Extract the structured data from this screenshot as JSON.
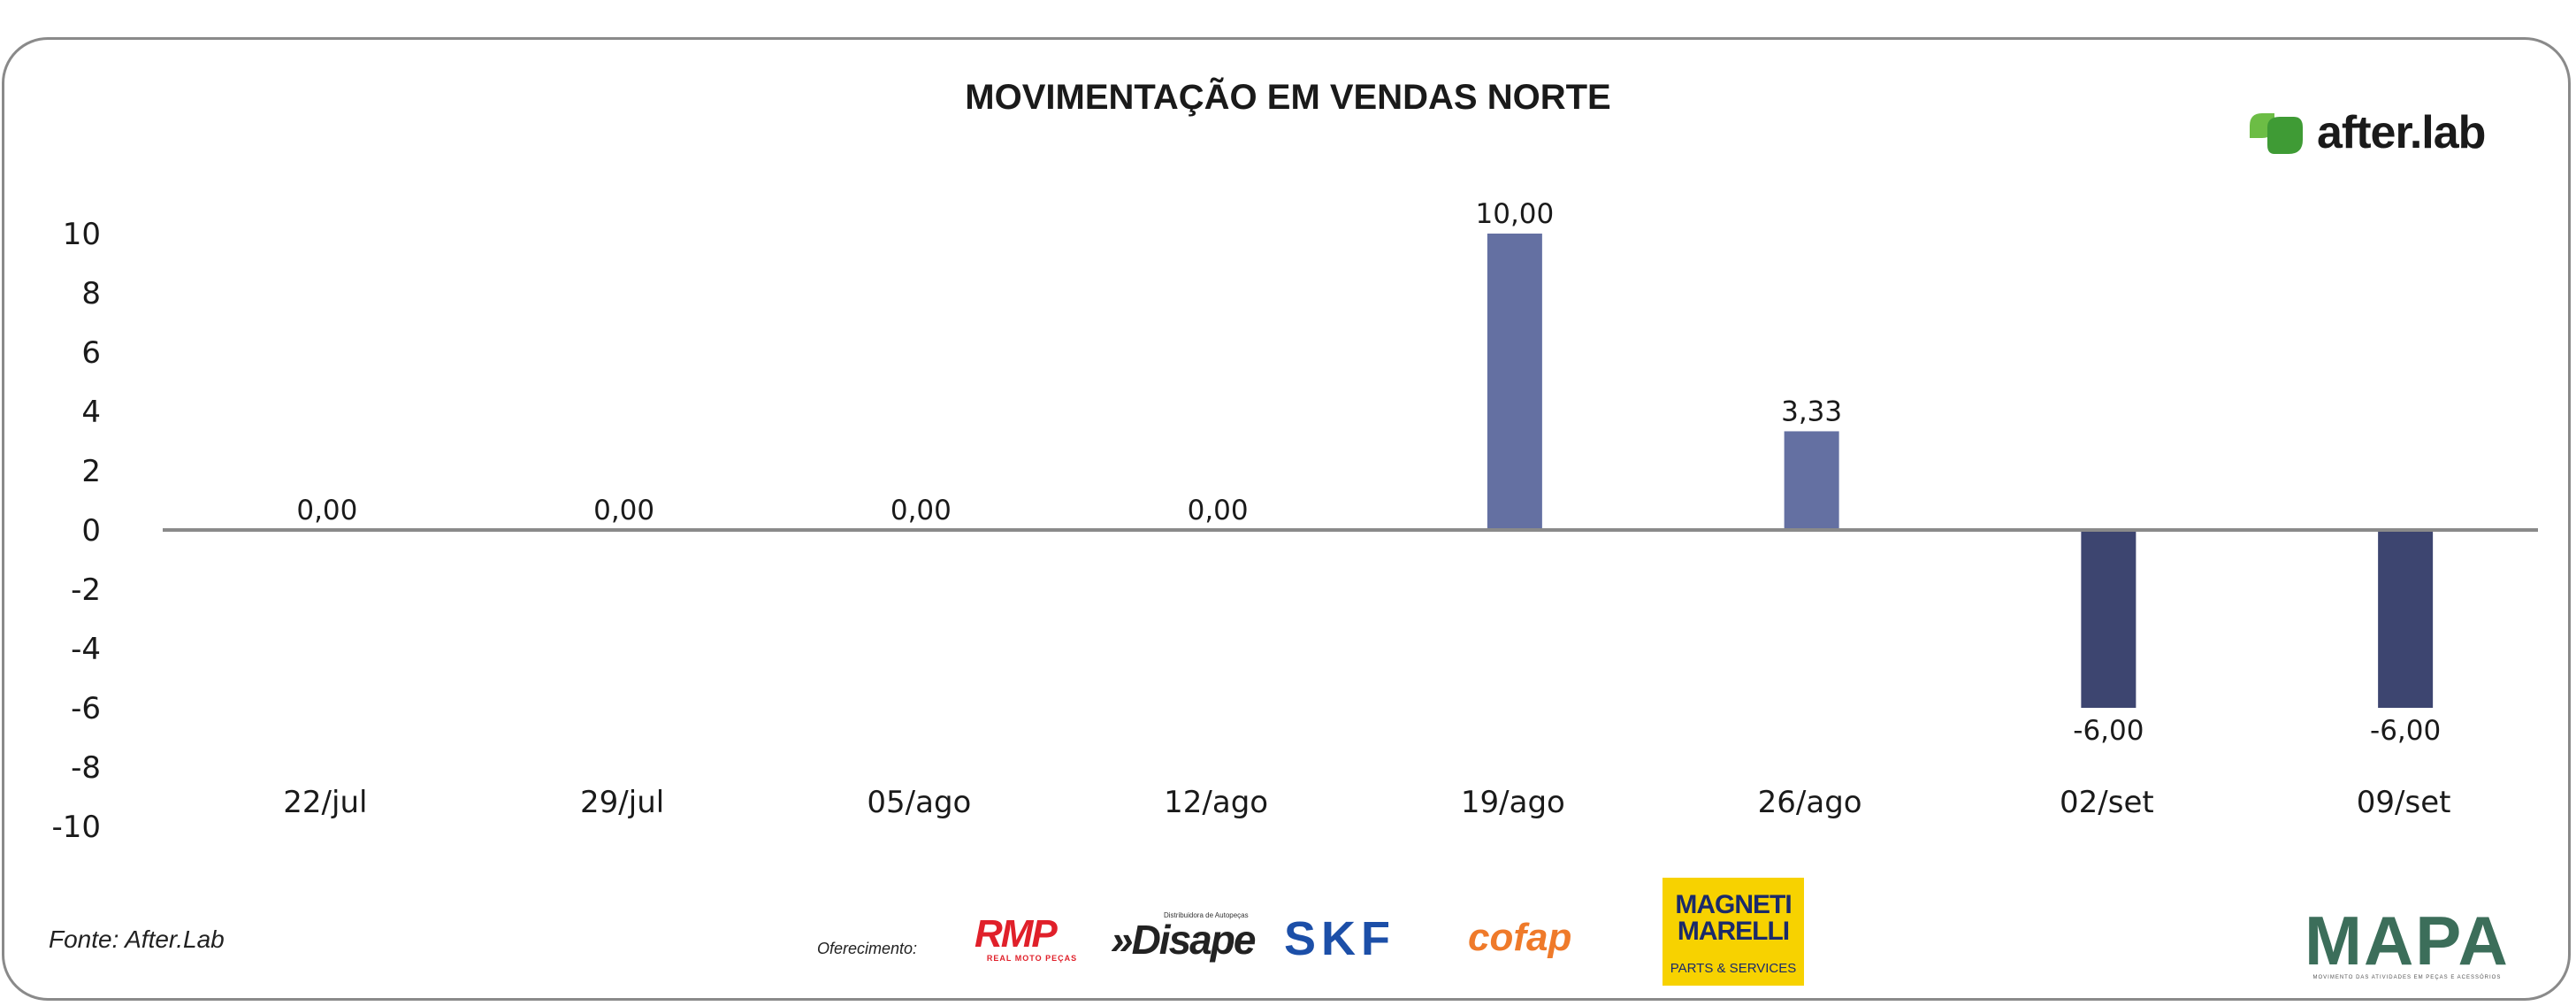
{
  "chart_data": {
    "type": "bar",
    "title": "MOVIMENTAÇÃO EM VENDAS NORTE",
    "categories": [
      "22/jul",
      "29/jul",
      "05/ago",
      "12/ago",
      "19/ago",
      "26/ago",
      "02/set",
      "09/set"
    ],
    "values": [
      0.0,
      0.0,
      0.0,
      0.0,
      10.0,
      3.33,
      -6.0,
      -6.0
    ],
    "value_labels": [
      "0,00",
      "0,00",
      "0,00",
      "0,00",
      "10,00",
      "3,33",
      "-6,00",
      "-6,00"
    ],
    "ylim": [
      -10,
      10
    ],
    "yticks": [
      10,
      8,
      6,
      4,
      2,
      0,
      -2,
      -4,
      -6,
      -8,
      -10
    ],
    "xlabel": "",
    "ylabel": "",
    "grid": false,
    "legend": "none",
    "colors": {
      "positive": "#6470a2",
      "negative": "#3d4570",
      "axis": "#8a8a8a"
    }
  },
  "source": "Fonte: After.Lab",
  "sponsors": {
    "label": "Oferecimento:",
    "rmp": {
      "main": "RMP",
      "sub": "REAL MOTO PEÇAS"
    },
    "disape": {
      "main": "»Disape",
      "sub": "Distribuidora de Autopeças"
    },
    "skf": "SKF",
    "cofap": "cofap",
    "magneti": {
      "main": "MAGNETI MARELLI",
      "sub": "PARTS & SERVICES"
    }
  },
  "brands": {
    "afterlab": "after.lab",
    "mapa": {
      "main": "MAPA",
      "sub": "MOVIMENTO DAS ATIVIDADES EM PEÇAS E ACESSÓRIOS"
    }
  }
}
